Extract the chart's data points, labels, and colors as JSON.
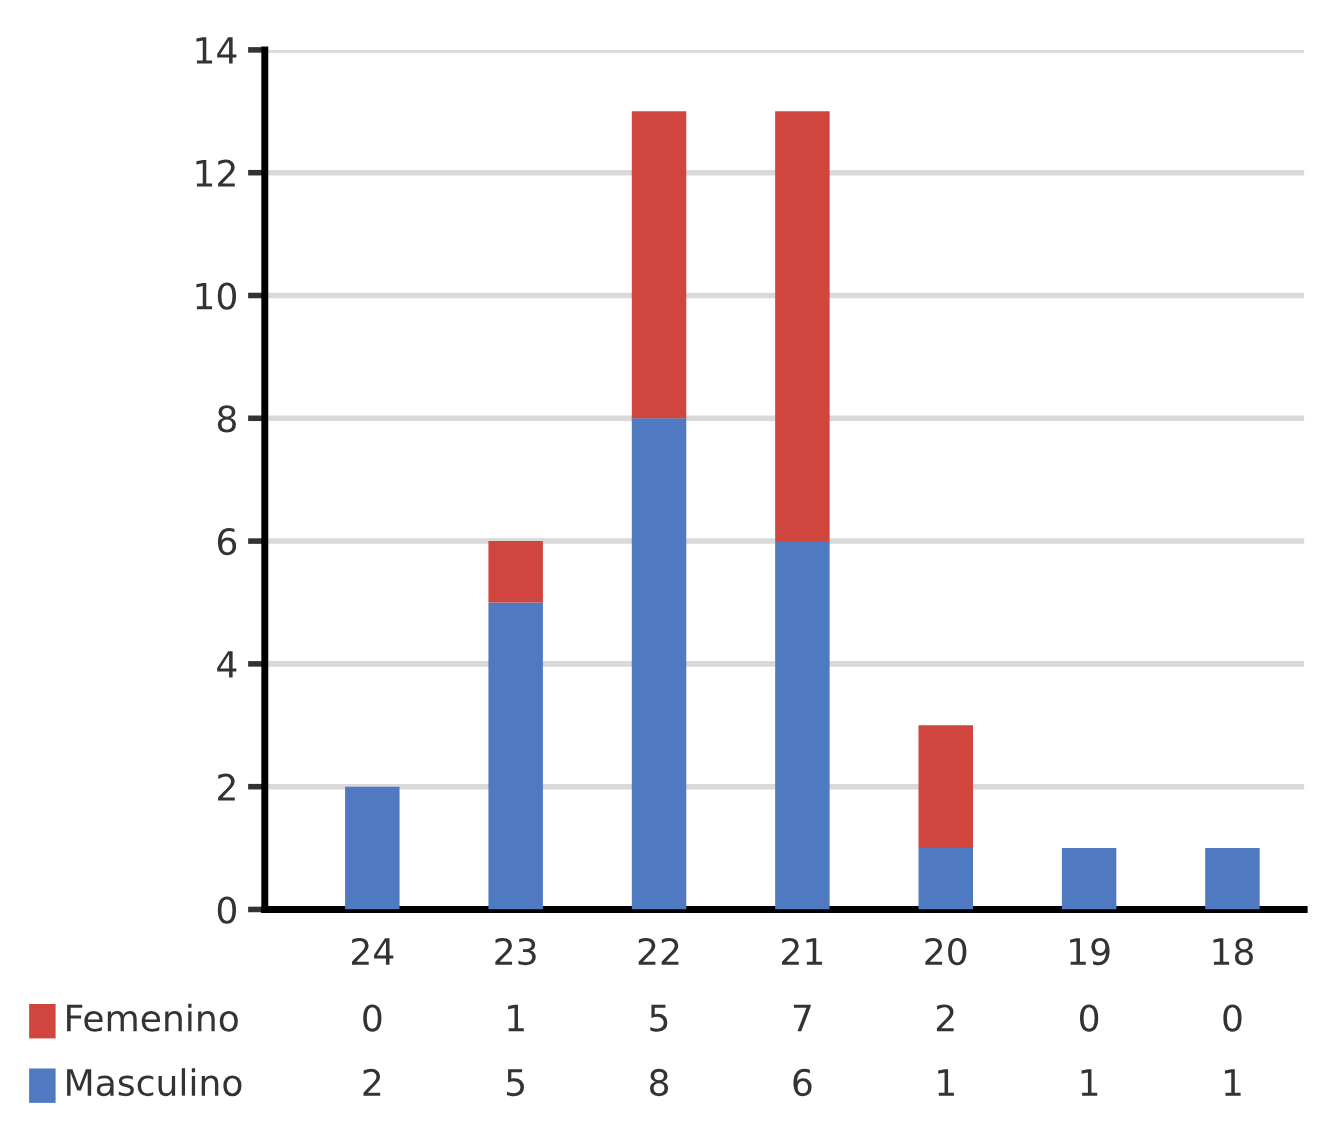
{
  "chart_data": {
    "type": "bar",
    "stacked": true,
    "categories": [
      "24",
      "23",
      "22",
      "21",
      "20",
      "19",
      "18"
    ],
    "series": [
      {
        "name": "Masculino",
        "color": "#4f79c0",
        "values": [
          2,
          5,
          8,
          6,
          1,
          1,
          1
        ]
      },
      {
        "name": "Femenino",
        "color": "#d0463e",
        "values": [
          0,
          1,
          5,
          7,
          2,
          0,
          0
        ]
      }
    ],
    "ylim": [
      0,
      14
    ],
    "yticks": [
      0,
      2,
      4,
      6,
      8,
      10,
      12,
      14
    ],
    "grid": "y",
    "legend": "bottom",
    "data_labels": true
  }
}
